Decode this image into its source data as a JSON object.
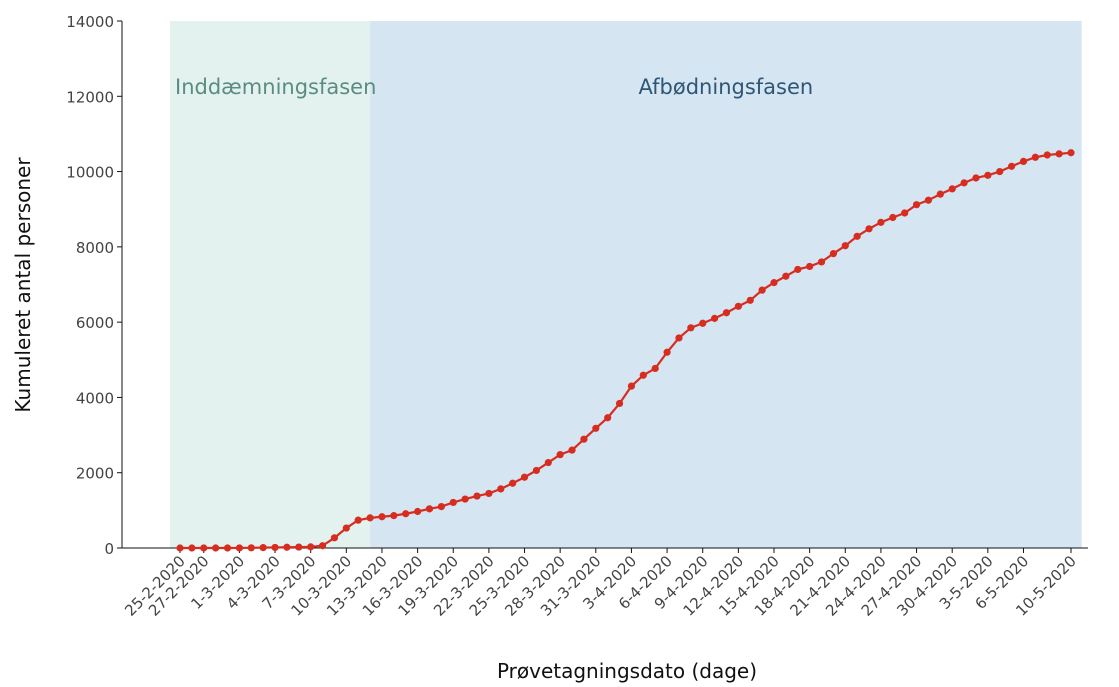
{
  "chart_data": {
    "type": "line",
    "x_label": "Prøvetagningsdato (dage)",
    "y_label": "Kumuleret antal personer",
    "categories": [
      "25-2-2020",
      null,
      "27-2-2020",
      null,
      null,
      "1-3-2020",
      null,
      null,
      "4-3-2020",
      null,
      null,
      "7-3-2020",
      null,
      null,
      "10-3-2020",
      null,
      null,
      "13-3-2020",
      null,
      null,
      "16-3-2020",
      null,
      null,
      "19-3-2020",
      null,
      null,
      "22-3-2020",
      null,
      null,
      "25-3-2020",
      null,
      null,
      "28-3-2020",
      null,
      null,
      "31-3-2020",
      null,
      null,
      "3-4-2020",
      null,
      null,
      "6-4-2020",
      null,
      null,
      "9-4-2020",
      null,
      null,
      "12-4-2020",
      null,
      null,
      "15-4-2020",
      null,
      null,
      "18-4-2020",
      null,
      null,
      "21-4-2020",
      null,
      null,
      "24-4-2020",
      null,
      null,
      "27-4-2020",
      null,
      null,
      "30-4-2020",
      null,
      null,
      "3-5-2020",
      null,
      null,
      "6-5-2020",
      null,
      null,
      null,
      "10-5-2020"
    ],
    "series": [
      {
        "color": "#d62d20",
        "values": [
          0,
          0,
          0,
          0,
          0,
          2,
          5,
          10,
          15,
          20,
          25,
          30,
          60,
          270,
          530,
          740,
          800,
          830,
          860,
          910,
          970,
          1040,
          1100,
          1210,
          1300,
          1380,
          1450,
          1570,
          1720,
          1880,
          2060,
          2270,
          2480,
          2600,
          2890,
          3180,
          3460,
          3840,
          4300,
          4590,
          4770,
          5200,
          5580,
          5850,
          5970,
          6100,
          6250,
          6420,
          6580,
          6850,
          7050,
          7220,
          7400,
          7480,
          7600,
          7820,
          8030,
          8280,
          8480,
          8650,
          8780,
          8900,
          9120,
          9240,
          9400,
          9540,
          9700,
          9830,
          9900,
          10000,
          10140,
          10270,
          10380,
          10440,
          10470,
          10500
        ]
      }
    ],
    "ylim": [
      0,
      14000
    ],
    "yticks": [
      0,
      2000,
      4000,
      6000,
      8000,
      10000,
      12000,
      14000
    ],
    "grid": false,
    "phases": [
      {
        "label": "Inddæmningsfasen",
        "color": "#e3f2ef",
        "text_color": "#5b8c80"
      },
      {
        "label": "Afbødningsfasen",
        "color": "#d5e5f2",
        "text_color": "#2f5677"
      }
    ]
  }
}
